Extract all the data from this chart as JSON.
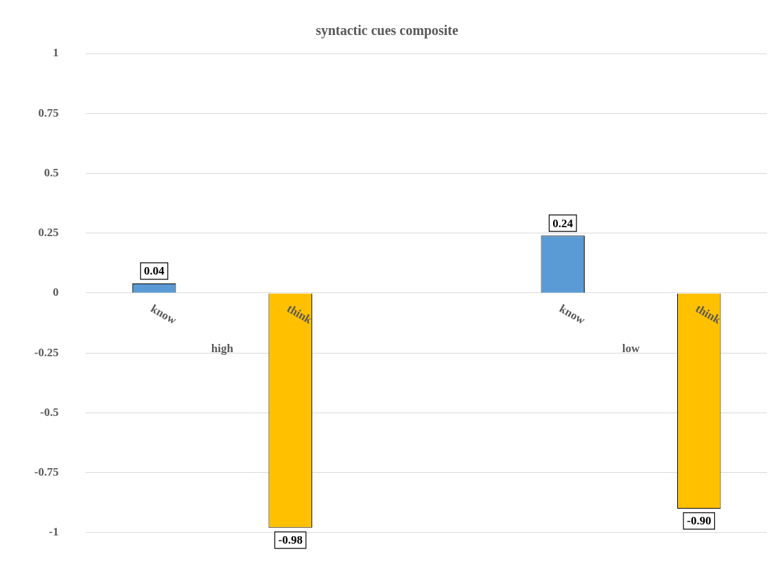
{
  "chart_data": {
    "type": "bar",
    "title": "syntactic cues composite",
    "categories": [
      "know",
      "think",
      null,
      "know",
      "think"
    ],
    "values": [
      0.04,
      -0.98,
      null,
      0.24,
      -0.9
    ],
    "colors": [
      "#5b9bd5",
      "#ffc000",
      "#ffffff",
      "#5b9bd5",
      "#ffc000"
    ],
    "value_labels": [
      "0.04",
      "-0.98",
      null,
      "0.24",
      "-0.90"
    ],
    "annotations": [
      "high",
      "low"
    ],
    "ylim": [
      -1,
      1
    ],
    "yticks": [
      -1,
      -0.75,
      -0.5,
      -0.25,
      0,
      0.25,
      0.5,
      0.75,
      1
    ],
    "grid": "y",
    "legend": false
  }
}
